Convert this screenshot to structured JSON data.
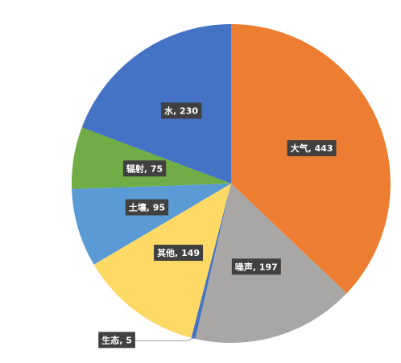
{
  "chart_data": {
    "type": "pie",
    "categories": [
      "大气",
      "噪声",
      "生态",
      "其他",
      "土壤",
      "辐射",
      "水"
    ],
    "values": [
      443,
      197,
      5,
      149,
      95,
      75,
      230
    ],
    "value_labels": [
      "大气, 443",
      "噪声, 197",
      "生态, 5",
      "其他, 149",
      "土壤, 95",
      "辐射, 75",
      "水, 230"
    ],
    "colors": [
      "#ed7d31",
      "#a9a7a6",
      "#4472c4",
      "#ffd966",
      "#5b9bd5",
      "#70ad47",
      "#4472c4"
    ]
  }
}
